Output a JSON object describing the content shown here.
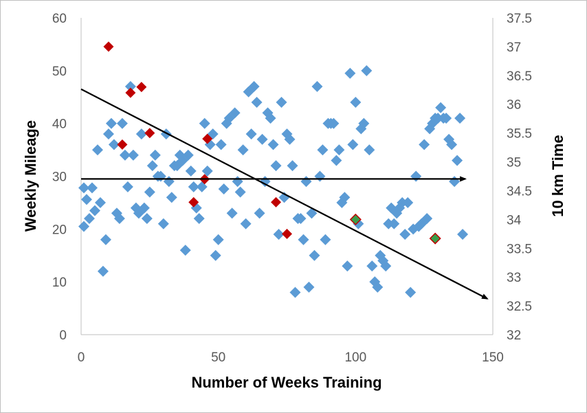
{
  "chart_data": {
    "type": "scatter",
    "xlabel": "Number of Weeks Training",
    "ylabel": "Weekly Mileage",
    "y2label": "10 km Time",
    "xlim": [
      0,
      150
    ],
    "ylim": [
      0,
      60
    ],
    "y2lim": [
      32,
      37.5
    ],
    "xticks": [
      "0",
      "50",
      "100",
      "150"
    ],
    "yticks": [
      "0",
      "10",
      "20",
      "30",
      "40",
      "50",
      "60"
    ],
    "y2ticks": [
      "32",
      "32.5",
      "33",
      "33.5",
      "34",
      "34.5",
      "35",
      "35.5",
      "36",
      "36.5",
      "37",
      "37.5"
    ],
    "grid": false,
    "legend": "none",
    "colors": {
      "mileage": "#5b9bd5",
      "race": "#c00000",
      "race_best": "#3a9e4a",
      "trend": "#000000",
      "axis": "#bfbfbf"
    },
    "series": [
      {
        "axis": "left",
        "marker": "diamond",
        "color": "#5b9bd5",
        "points": [
          [
            1,
            20.5
          ],
          [
            1,
            27.8
          ],
          [
            2,
            25.6
          ],
          [
            3,
            22
          ],
          [
            4,
            27.8
          ],
          [
            5,
            23.5
          ],
          [
            6,
            35
          ],
          [
            7,
            25
          ],
          [
            8,
            12
          ],
          [
            9,
            18
          ],
          [
            10,
            38
          ],
          [
            11,
            40
          ],
          [
            12,
            36
          ],
          [
            13,
            23
          ],
          [
            14,
            22
          ],
          [
            15,
            40
          ],
          [
            16,
            34
          ],
          [
            17,
            28
          ],
          [
            18,
            47
          ],
          [
            19,
            34
          ],
          [
            20,
            24
          ],
          [
            21,
            23
          ],
          [
            22,
            38
          ],
          [
            23,
            24
          ],
          [
            24,
            22
          ],
          [
            25,
            27
          ],
          [
            26,
            32
          ],
          [
            27,
            34
          ],
          [
            28,
            30
          ],
          [
            29,
            30
          ],
          [
            30,
            21
          ],
          [
            31,
            38
          ],
          [
            32,
            29
          ],
          [
            33,
            26
          ],
          [
            34,
            32
          ],
          [
            35,
            32
          ],
          [
            36,
            34
          ],
          [
            37,
            33
          ],
          [
            38,
            16
          ],
          [
            39,
            34
          ],
          [
            40,
            31
          ],
          [
            41,
            28
          ],
          [
            42,
            24
          ],
          [
            43,
            22
          ],
          [
            44,
            28
          ],
          [
            45,
            40
          ],
          [
            46,
            31
          ],
          [
            47,
            36
          ],
          [
            48,
            38
          ],
          [
            49,
            15
          ],
          [
            50,
            18
          ],
          [
            51,
            36
          ],
          [
            52,
            27.6
          ],
          [
            53,
            40
          ],
          [
            54,
            41
          ],
          [
            55,
            23
          ],
          [
            56,
            42
          ],
          [
            57,
            29
          ],
          [
            58,
            27
          ],
          [
            59,
            35
          ],
          [
            60,
            21
          ],
          [
            61,
            46
          ],
          [
            62,
            38
          ],
          [
            63,
            47
          ],
          [
            64,
            44
          ],
          [
            65,
            23
          ],
          [
            66,
            37
          ],
          [
            67,
            29
          ],
          [
            68,
            42
          ],
          [
            69,
            41
          ],
          [
            70,
            36
          ],
          [
            71,
            32
          ],
          [
            72,
            19
          ],
          [
            73,
            44
          ],
          [
            74,
            26
          ],
          [
            75,
            38
          ],
          [
            76,
            37
          ],
          [
            77,
            32
          ],
          [
            78,
            8
          ],
          [
            79,
            22
          ],
          [
            80,
            22
          ],
          [
            81,
            18
          ],
          [
            82,
            29
          ],
          [
            83,
            9
          ],
          [
            84,
            23
          ],
          [
            85,
            15
          ],
          [
            86,
            47
          ],
          [
            87,
            30
          ],
          [
            88,
            35
          ],
          [
            89,
            18
          ],
          [
            90,
            40
          ],
          [
            91,
            40
          ],
          [
            92,
            40
          ],
          [
            93,
            33
          ],
          [
            94,
            35
          ],
          [
            95,
            25
          ],
          [
            96,
            26
          ],
          [
            97,
            13
          ],
          [
            98,
            49.5
          ],
          [
            99,
            36
          ],
          [
            100,
            44
          ],
          [
            101,
            21
          ],
          [
            102,
            39
          ],
          [
            103,
            40
          ],
          [
            104,
            50
          ],
          [
            105,
            35
          ],
          [
            106,
            13
          ],
          [
            107,
            10
          ],
          [
            108,
            9
          ],
          [
            109,
            15
          ],
          [
            110,
            14
          ],
          [
            111,
            13
          ],
          [
            112,
            21
          ],
          [
            113,
            24
          ],
          [
            114,
            21
          ],
          [
            115,
            23
          ],
          [
            116,
            24
          ],
          [
            117,
            25
          ],
          [
            118,
            19
          ],
          [
            119,
            25
          ],
          [
            120,
            8
          ],
          [
            121,
            20
          ],
          [
            122,
            30
          ],
          [
            123,
            20.5
          ],
          [
            124,
            21
          ],
          [
            125,
            36
          ],
          [
            126,
            22
          ],
          [
            127,
            39
          ],
          [
            128,
            40
          ],
          [
            129,
            41
          ],
          [
            130,
            41
          ],
          [
            131,
            43
          ],
          [
            132,
            41
          ],
          [
            133,
            41
          ],
          [
            134,
            37
          ],
          [
            135,
            36
          ],
          [
            136,
            29
          ],
          [
            137,
            33
          ],
          [
            138,
            41
          ],
          [
            139,
            19
          ]
        ]
      },
      {
        "axis": "right",
        "marker": "diamond",
        "color": "#c00000",
        "points": [
          [
            10,
            37
          ],
          [
            15,
            35.3
          ],
          [
            18,
            36.2
          ],
          [
            22,
            36.3
          ],
          [
            25,
            35.5
          ],
          [
            41,
            34.3
          ],
          [
            45,
            34.7
          ],
          [
            46,
            35.4
          ],
          [
            71,
            34.3
          ],
          [
            75,
            33.75
          ]
        ]
      },
      {
        "axis": "right",
        "marker": "diamond",
        "color": "#3a9e4a",
        "outline": "#c00000",
        "points": [
          [
            100,
            34
          ],
          [
            129,
            33.67
          ]
        ]
      }
    ],
    "annotations": [
      {
        "type": "arrow",
        "from": [
          0,
          46.5
        ],
        "to": [
          148,
          6.8
        ]
      },
      {
        "type": "arrow",
        "from": [
          0,
          29.5
        ],
        "to": [
          140,
          29.5
        ]
      }
    ]
  }
}
